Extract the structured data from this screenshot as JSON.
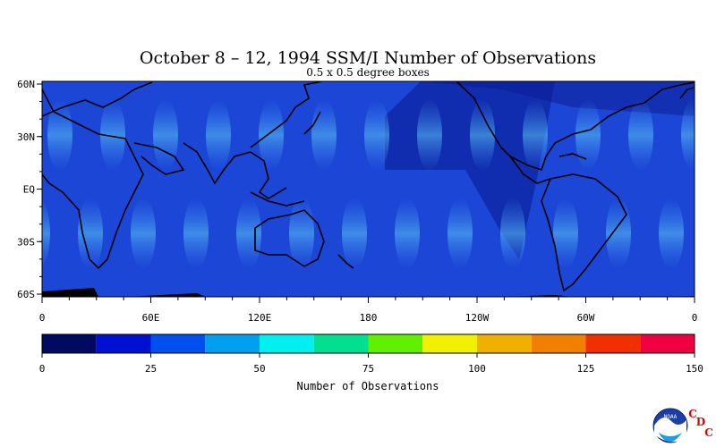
{
  "title": "October 8 – 12, 1994 SSM/I Number of Observations",
  "subtitle": "0.5 x 0.5 degree boxes",
  "map": {
    "y_labels": [
      "60N",
      "30N",
      "EQ",
      "30S",
      "60S"
    ],
    "x_labels": [
      "0",
      "60E",
      "120E",
      "180",
      "120W",
      "60W",
      "0"
    ]
  },
  "colorbar": {
    "label": "Number of Observations",
    "ticks": [
      "0",
      "25",
      "50",
      "75",
      "100",
      "125",
      "150"
    ],
    "range": [
      0,
      150
    ],
    "step": 12.5,
    "colors": [
      "#000a60",
      "#0010d0",
      "#0050f0",
      "#00a0f0",
      "#00f0f0",
      "#00e090",
      "#60f000",
      "#f0f000",
      "#f0b000",
      "#f08000",
      "#f03000",
      "#f00040"
    ]
  },
  "logo": {
    "text": "NOAA",
    "letters": [
      "C",
      "D",
      "C"
    ],
    "letter_color": "#e00000"
  },
  "colors": {
    "ocean_base": "#1c46d6",
    "ocean_dark": "#0a1a90",
    "swath_light": "#3c8cf4",
    "swath_highlight": "#5cc6f6",
    "coast": "#000000"
  }
}
